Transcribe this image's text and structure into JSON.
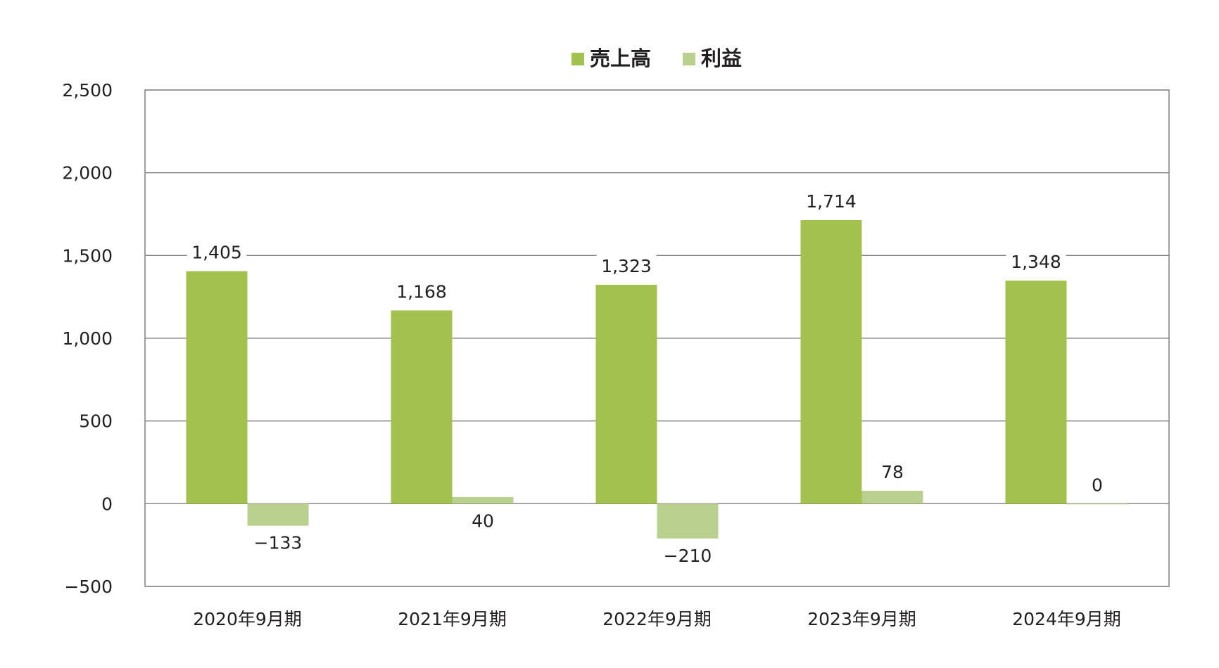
{
  "chart_data": {
    "type": "bar",
    "categories": [
      "2020年9月期",
      "2021年9月期",
      "2022年9月期",
      "2023年9月期",
      "2024年9月期"
    ],
    "series": [
      {
        "name": "売上高",
        "values": [
          1405,
          1168,
          1323,
          1714,
          1348
        ],
        "color": "#a3c14f"
      },
      {
        "name": "利益",
        "values": [
          -133,
          40,
          -210,
          78,
          0
        ],
        "color": "#b9d08f"
      }
    ],
    "data_labels": {
      "売上高": [
        "1,405",
        "1,168",
        "1,323",
        "1,714",
        "1,348"
      ],
      "利益": [
        "−133",
        "40",
        "−210",
        "78",
        "0"
      ]
    },
    "y_ticks": [
      -500,
      0,
      500,
      1000,
      1500,
      2000,
      2500
    ],
    "y_tick_labels": [
      "−500",
      "0",
      "500",
      "1,000",
      "1,500",
      "2,000",
      "2,500"
    ],
    "ylim": [
      -500,
      2500
    ],
    "grid": true,
    "legend_position": "top-center",
    "title": "",
    "xlabel": "",
    "ylabel": ""
  },
  "colors": {
    "grid": "#808080",
    "frame": "#808080",
    "text": "#231f20"
  }
}
